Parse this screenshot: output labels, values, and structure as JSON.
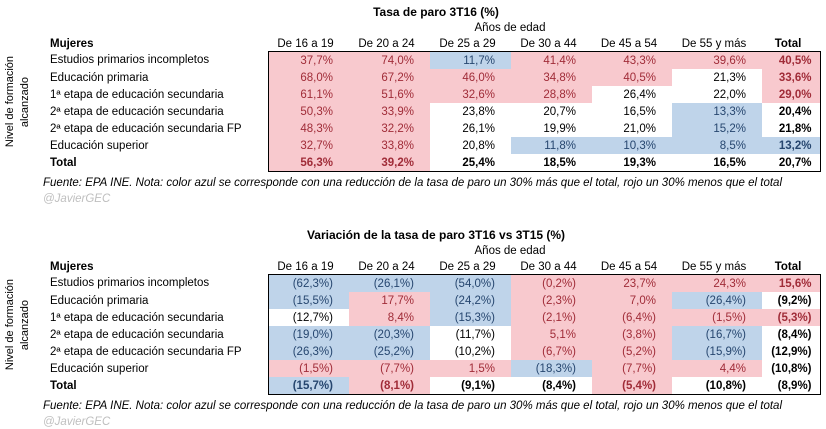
{
  "colors": {
    "pink_fill": "#F8C9CE",
    "pink_text": "#A02C38",
    "blue_fill": "#BFD4EA",
    "blue_text": "#26466F",
    "handle_text": "#BFBFBF",
    "border": "#000000"
  },
  "shared": {
    "side_label_line1": "Nivel de formación",
    "side_label_line2": "alcanzado",
    "row_header": "Mujeres",
    "group_header": "Años de edad",
    "source_note": "Fuente: EPA INE. Nota: color azul se corresponde con una reducción de la tasa de paro un 30% más que el total, rojo un 30% menos que el total",
    "handle": "@JavierGEC"
  },
  "chart_data": [
    {
      "type": "table",
      "title": "Tasa de paro 3T16 (%)",
      "group_header": "Años de edad",
      "row_header": "Mujeres",
      "categories": [
        "De 16 a 19",
        "De 20 a 24",
        "De 25 a 29",
        "De 30 a 44",
        "De 45 a 54",
        "De 55 y más",
        "Total"
      ],
      "legend_note": "color azul = reducción de la tasa de paro un 30% más que el total; rojo = un 30% menos que el total",
      "rows": [
        {
          "label": "Estudios primarios incompletos",
          "bold": false,
          "cells": [
            {
              "t": "37,7%",
              "n": 37.7,
              "c": "pink"
            },
            {
              "t": "74,0%",
              "n": 74.0,
              "c": "pink"
            },
            {
              "t": "11,7%",
              "n": 11.7,
              "c": "blue"
            },
            {
              "t": "41,4%",
              "n": 41.4,
              "c": "pink"
            },
            {
              "t": "43,3%",
              "n": 43.3,
              "c": "pink"
            },
            {
              "t": "39,6%",
              "n": 39.6,
              "c": "pink"
            },
            {
              "t": "40,5%",
              "n": 40.5,
              "c": "pink"
            }
          ]
        },
        {
          "label": "Educación primaria",
          "bold": false,
          "cells": [
            {
              "t": "68,0%",
              "n": 68.0,
              "c": "pink"
            },
            {
              "t": "67,2%",
              "n": 67.2,
              "c": "pink"
            },
            {
              "t": "46,0%",
              "n": 46.0,
              "c": "pink"
            },
            {
              "t": "34,8%",
              "n": 34.8,
              "c": "pink"
            },
            {
              "t": "40,5%",
              "n": 40.5,
              "c": "pink"
            },
            {
              "t": "21,3%",
              "n": 21.3,
              "c": "white"
            },
            {
              "t": "33,6%",
              "n": 33.6,
              "c": "pink"
            }
          ]
        },
        {
          "label": "1ª etapa de educación secundaria",
          "bold": false,
          "cells": [
            {
              "t": "61,1%",
              "n": 61.1,
              "c": "pink"
            },
            {
              "t": "51,6%",
              "n": 51.6,
              "c": "pink"
            },
            {
              "t": "32,6%",
              "n": 32.6,
              "c": "pink"
            },
            {
              "t": "28,8%",
              "n": 28.8,
              "c": "pink"
            },
            {
              "t": "26,4%",
              "n": 26.4,
              "c": "white"
            },
            {
              "t": "22,0%",
              "n": 22.0,
              "c": "white"
            },
            {
              "t": "29,0%",
              "n": 29.0,
              "c": "pink"
            }
          ]
        },
        {
          "label": "2ª etapa de educación secundaria",
          "bold": false,
          "cells": [
            {
              "t": "50,3%",
              "n": 50.3,
              "c": "pink"
            },
            {
              "t": "33,9%",
              "n": 33.9,
              "c": "pink"
            },
            {
              "t": "23,8%",
              "n": 23.8,
              "c": "white"
            },
            {
              "t": "20,7%",
              "n": 20.7,
              "c": "white"
            },
            {
              "t": "16,5%",
              "n": 16.5,
              "c": "white"
            },
            {
              "t": "13,3%",
              "n": 13.3,
              "c": "blue"
            },
            {
              "t": "20,4%",
              "n": 20.4,
              "c": "white"
            }
          ]
        },
        {
          "label": "2ª etapa de educación secundaria FP",
          "bold": false,
          "cells": [
            {
              "t": "48,3%",
              "n": 48.3,
              "c": "pink"
            },
            {
              "t": "32,2%",
              "n": 32.2,
              "c": "pink"
            },
            {
              "t": "26,1%",
              "n": 26.1,
              "c": "white"
            },
            {
              "t": "19,9%",
              "n": 19.9,
              "c": "white"
            },
            {
              "t": "21,0%",
              "n": 21.0,
              "c": "white"
            },
            {
              "t": "15,2%",
              "n": 15.2,
              "c": "blue"
            },
            {
              "t": "21,8%",
              "n": 21.8,
              "c": "white"
            }
          ]
        },
        {
          "label": "Educación superior",
          "bold": false,
          "cells": [
            {
              "t": "32,7%",
              "n": 32.7,
              "c": "pink"
            },
            {
              "t": "33,8%",
              "n": 33.8,
              "c": "pink"
            },
            {
              "t": "20,8%",
              "n": 20.8,
              "c": "white"
            },
            {
              "t": "11,8%",
              "n": 11.8,
              "c": "blue"
            },
            {
              "t": "10,3%",
              "n": 10.3,
              "c": "blue"
            },
            {
              "t": "8,5%",
              "n": 8.5,
              "c": "blue"
            },
            {
              "t": "13,2%",
              "n": 13.2,
              "c": "blue"
            }
          ]
        },
        {
          "label": "Total",
          "bold": true,
          "cells": [
            {
              "t": "56,3%",
              "n": 56.3,
              "c": "pink"
            },
            {
              "t": "39,2%",
              "n": 39.2,
              "c": "pink"
            },
            {
              "t": "25,4%",
              "n": 25.4,
              "c": "white"
            },
            {
              "t": "18,5%",
              "n": 18.5,
              "c": "white"
            },
            {
              "t": "19,3%",
              "n": 19.3,
              "c": "white"
            },
            {
              "t": "16,5%",
              "n": 16.5,
              "c": "white"
            },
            {
              "t": "20,7%",
              "n": 20.7,
              "c": "white"
            }
          ]
        }
      ],
      "footer": "Fuente: EPA INE. Nota: color azul se corresponde con una reducción de la tasa de paro un 30% más que el total, rojo un 30% menos que el total",
      "handle": "@JavierGEC"
    },
    {
      "type": "table",
      "title": "Variación de la tasa de paro 3T16 vs 3T15 (%)",
      "group_header": "Años de edad",
      "row_header": "Mujeres",
      "categories": [
        "De 16 a 19",
        "De 20 a 24",
        "De 25 a 29",
        "De 30 a 44",
        "De 45 a 54",
        "De 55 y más",
        "Total"
      ],
      "legend_note": "color azul = reducción de la tasa de paro un 30% más que el total; rojo = un 30% menos que el total",
      "rows": [
        {
          "label": "Estudios primarios incompletos",
          "bold": false,
          "cells": [
            {
              "t": "(62,3%)",
              "n": -62.3,
              "c": "blue"
            },
            {
              "t": "(26,1%)",
              "n": -26.1,
              "c": "blue"
            },
            {
              "t": "(54,0%)",
              "n": -54.0,
              "c": "blue"
            },
            {
              "t": "(0,2%)",
              "n": -0.2,
              "c": "pink"
            },
            {
              "t": "23,7%",
              "n": 23.7,
              "c": "pink"
            },
            {
              "t": "24,3%",
              "n": 24.3,
              "c": "pink"
            },
            {
              "t": "15,6%",
              "n": 15.6,
              "c": "pink"
            }
          ]
        },
        {
          "label": "Educación primaria",
          "bold": false,
          "cells": [
            {
              "t": "(15,5%)",
              "n": -15.5,
              "c": "blue"
            },
            {
              "t": "17,7%",
              "n": 17.7,
              "c": "pink"
            },
            {
              "t": "(24,2%)",
              "n": -24.2,
              "c": "blue"
            },
            {
              "t": "(2,3%)",
              "n": -2.3,
              "c": "pink"
            },
            {
              "t": "7,0%",
              "n": 7.0,
              "c": "pink"
            },
            {
              "t": "(26,4%)",
              "n": -26.4,
              "c": "blue"
            },
            {
              "t": "(9,2%)",
              "n": -9.2,
              "c": "white"
            }
          ]
        },
        {
          "label": "1ª etapa de educación secundaria",
          "bold": false,
          "cells": [
            {
              "t": "(12,7%)",
              "n": -12.7,
              "c": "white"
            },
            {
              "t": "8,4%",
              "n": 8.4,
              "c": "pink"
            },
            {
              "t": "(15,3%)",
              "n": -15.3,
              "c": "blue"
            },
            {
              "t": "(2,1%)",
              "n": -2.1,
              "c": "pink"
            },
            {
              "t": "(6,4%)",
              "n": -6.4,
              "c": "pink"
            },
            {
              "t": "(1,5%)",
              "n": -1.5,
              "c": "pink"
            },
            {
              "t": "(5,3%)",
              "n": -5.3,
              "c": "pink"
            }
          ]
        },
        {
          "label": "2ª etapa de educación secundaria",
          "bold": false,
          "cells": [
            {
              "t": "(19,0%)",
              "n": -19.0,
              "c": "blue"
            },
            {
              "t": "(20,3%)",
              "n": -20.3,
              "c": "blue"
            },
            {
              "t": "(11,7%)",
              "n": -11.7,
              "c": "white"
            },
            {
              "t": "5,1%",
              "n": 5.1,
              "c": "pink"
            },
            {
              "t": "(3,8%)",
              "n": -3.8,
              "c": "pink"
            },
            {
              "t": "(16,7%)",
              "n": -16.7,
              "c": "blue"
            },
            {
              "t": "(8,4%)",
              "n": -8.4,
              "c": "white"
            }
          ]
        },
        {
          "label": "2ª etapa de educación secundaria FP",
          "bold": false,
          "cells": [
            {
              "t": "(26,3%)",
              "n": -26.3,
              "c": "blue"
            },
            {
              "t": "(25,2%)",
              "n": -25.2,
              "c": "blue"
            },
            {
              "t": "(10,2%)",
              "n": -10.2,
              "c": "white"
            },
            {
              "t": "(6,7%)",
              "n": -6.7,
              "c": "pink"
            },
            {
              "t": "(5,2%)",
              "n": -5.2,
              "c": "pink"
            },
            {
              "t": "(15,9%)",
              "n": -15.9,
              "c": "blue"
            },
            {
              "t": "(12,9%)",
              "n": -12.9,
              "c": "white"
            }
          ]
        },
        {
          "label": "Educación superior",
          "bold": false,
          "cells": [
            {
              "t": "(1,5%)",
              "n": -1.5,
              "c": "pink"
            },
            {
              "t": "(7,7%)",
              "n": -7.7,
              "c": "pink"
            },
            {
              "t": "1,5%",
              "n": 1.5,
              "c": "pink"
            },
            {
              "t": "(18,3%)",
              "n": -18.3,
              "c": "blue"
            },
            {
              "t": "(7,7%)",
              "n": -7.7,
              "c": "pink"
            },
            {
              "t": "4,4%",
              "n": 4.4,
              "c": "pink"
            },
            {
              "t": "(10,8%)",
              "n": -10.8,
              "c": "white"
            }
          ]
        },
        {
          "label": "Total",
          "bold": true,
          "cells": [
            {
              "t": "(15,7%)",
              "n": -15.7,
              "c": "blue"
            },
            {
              "t": "(8,1%)",
              "n": -8.1,
              "c": "pink"
            },
            {
              "t": "(9,1%)",
              "n": -9.1,
              "c": "white"
            },
            {
              "t": "(8,4%)",
              "n": -8.4,
              "c": "white"
            },
            {
              "t": "(5,4%)",
              "n": -5.4,
              "c": "pink"
            },
            {
              "t": "(10,8%)",
              "n": -10.8,
              "c": "white"
            },
            {
              "t": "(8,9%)",
              "n": -8.9,
              "c": "white"
            }
          ]
        }
      ],
      "footer": "Fuente: EPA INE. Nota: color azul se corresponde con una reducción de la tasa de paro un 30% más que el total, rojo un 30% menos que el total",
      "handle": "@JavierGEC"
    }
  ]
}
